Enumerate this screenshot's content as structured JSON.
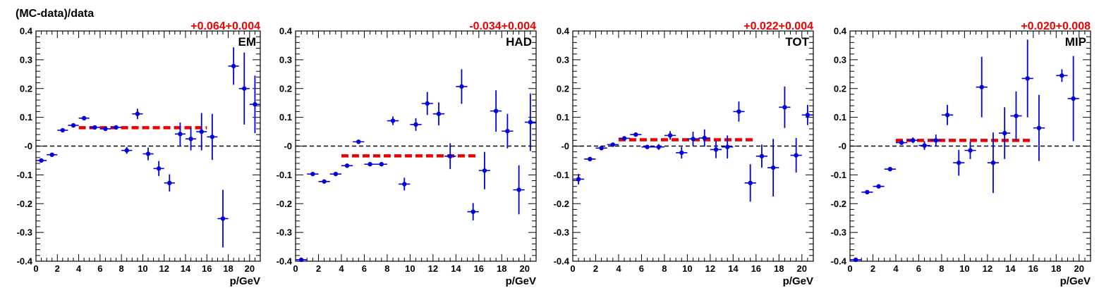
{
  "ylabel": "(MC-data)/data",
  "colors": {
    "points": "#0000dd",
    "fit": "#ee0000",
    "reference": "#000000",
    "fit_label": "#ee0000"
  },
  "chart_data": [
    {
      "type": "scatter",
      "label": "EM",
      "fit_label": "+0.064+0.004",
      "xlabel": "p/GeV",
      "xlim": [
        0,
        21
      ],
      "ylim": [
        -0.4,
        0.4
      ],
      "x_ticks": [
        "0",
        "2",
        "4",
        "6",
        "8",
        "10",
        "12",
        "14",
        "16",
        "18",
        "20"
      ],
      "y_ticks": [
        "-0.4",
        "-0.3",
        "-0.2",
        "-0.1",
        "-0",
        "0.1",
        "0.2",
        "0.3",
        "0.4"
      ],
      "reference_y": 0,
      "fit": {
        "x": [
          4,
          16
        ],
        "y": 0.064
      },
      "points": [
        {
          "x": 0.5,
          "y": -0.05,
          "err": 0.004
        },
        {
          "x": 1.5,
          "y": -0.03,
          "err": 0.004
        },
        {
          "x": 2.5,
          "y": 0.055,
          "err": 0.004
        },
        {
          "x": 3.5,
          "y": 0.072,
          "err": 0.004
        },
        {
          "x": 4.5,
          "y": 0.097,
          "err": 0.004
        },
        {
          "x": 5.5,
          "y": 0.065,
          "err": 0.004
        },
        {
          "x": 6.5,
          "y": 0.06,
          "err": 0.004
        },
        {
          "x": 7.5,
          "y": 0.065,
          "err": 0.004
        },
        {
          "x": 8.5,
          "y": -0.015,
          "err": 0.012
        },
        {
          "x": 9.5,
          "y": 0.112,
          "err": 0.018
        },
        {
          "x": 10.5,
          "y": -0.027,
          "err": 0.022
        },
        {
          "x": 11.5,
          "y": -0.078,
          "err": 0.026
        },
        {
          "x": 12.5,
          "y": -0.128,
          "err": 0.03
        },
        {
          "x": 13.5,
          "y": 0.042,
          "err": 0.04
        },
        {
          "x": 14.5,
          "y": 0.025,
          "err": 0.04
        },
        {
          "x": 15.5,
          "y": 0.05,
          "err": 0.065
        },
        {
          "x": 16.5,
          "y": 0.032,
          "err": 0.08
        },
        {
          "x": 17.5,
          "y": -0.252,
          "err": 0.1
        },
        {
          "x": 18.5,
          "y": 0.278,
          "err": 0.065
        },
        {
          "x": 19.5,
          "y": 0.2,
          "err": 0.125
        },
        {
          "x": 20.5,
          "y": 0.145,
          "err": 0.1
        }
      ]
    },
    {
      "type": "scatter",
      "label": "HAD",
      "fit_label": "-0.034+0.004",
      "xlabel": "p/GeV",
      "xlim": [
        0,
        21
      ],
      "ylim": [
        -0.4,
        0.4
      ],
      "x_ticks": [
        "0",
        "2",
        "4",
        "6",
        "8",
        "10",
        "12",
        "14",
        "16",
        "18",
        "20"
      ],
      "y_ticks": [
        "-0.4",
        "-0.3",
        "-0.2",
        "-0.1",
        "-0",
        "0.1",
        "0.2",
        "0.3",
        "0.4"
      ],
      "reference_y": 0,
      "fit": {
        "x": [
          4,
          16
        ],
        "y": -0.034
      },
      "points": [
        {
          "x": 0.5,
          "y": -0.395,
          "err": 0.004
        },
        {
          "x": 1.5,
          "y": -0.097,
          "err": 0.004
        },
        {
          "x": 2.5,
          "y": -0.123,
          "err": 0.004
        },
        {
          "x": 3.5,
          "y": -0.097,
          "err": 0.004
        },
        {
          "x": 4.5,
          "y": -0.068,
          "err": 0.004
        },
        {
          "x": 5.5,
          "y": 0.015,
          "err": 0.004
        },
        {
          "x": 6.5,
          "y": -0.063,
          "err": 0.004
        },
        {
          "x": 7.5,
          "y": -0.063,
          "err": 0.004
        },
        {
          "x": 8.5,
          "y": 0.088,
          "err": 0.015
        },
        {
          "x": 9.5,
          "y": -0.132,
          "err": 0.022
        },
        {
          "x": 10.5,
          "y": 0.075,
          "err": 0.022
        },
        {
          "x": 11.5,
          "y": 0.148,
          "err": 0.04
        },
        {
          "x": 12.5,
          "y": 0.112,
          "err": 0.04
        },
        {
          "x": 13.5,
          "y": -0.035,
          "err": 0.045
        },
        {
          "x": 14.5,
          "y": 0.207,
          "err": 0.06
        },
        {
          "x": 15.5,
          "y": -0.228,
          "err": 0.03
        },
        {
          "x": 16.5,
          "y": -0.085,
          "err": 0.065
        },
        {
          "x": 17.5,
          "y": 0.122,
          "err": 0.072
        },
        {
          "x": 18.5,
          "y": 0.052,
          "err": 0.06
        },
        {
          "x": 19.5,
          "y": -0.152,
          "err": 0.085
        },
        {
          "x": 20.5,
          "y": 0.083,
          "err": 0.1
        }
      ]
    },
    {
      "type": "scatter",
      "label": "TOT",
      "fit_label": "+0.022+0.004",
      "xlabel": "p/GeV",
      "xlim": [
        0,
        21
      ],
      "ylim": [
        -0.4,
        0.4
      ],
      "x_ticks": [
        "0",
        "2",
        "4",
        "6",
        "8",
        "10",
        "12",
        "14",
        "16",
        "18",
        "20"
      ],
      "y_ticks": [
        "-0.4",
        "-0.3",
        "-0.2",
        "-0.1",
        "-0",
        "0.1",
        "0.2",
        "0.3",
        "0.4"
      ],
      "reference_y": 0,
      "fit": {
        "x": [
          4,
          16
        ],
        "y": 0.022
      },
      "points": [
        {
          "x": 0.5,
          "y": -0.115,
          "err": 0.018
        },
        {
          "x": 1.5,
          "y": -0.045,
          "err": 0.006
        },
        {
          "x": 2.5,
          "y": -0.007,
          "err": 0.004
        },
        {
          "x": 3.5,
          "y": 0.005,
          "err": 0.004
        },
        {
          "x": 4.5,
          "y": 0.027,
          "err": 0.004
        },
        {
          "x": 5.5,
          "y": 0.04,
          "err": 0.006
        },
        {
          "x": 6.5,
          "y": -0.003,
          "err": 0.006
        },
        {
          "x": 7.5,
          "y": -0.003,
          "err": 0.01
        },
        {
          "x": 8.5,
          "y": 0.037,
          "err": 0.015
        },
        {
          "x": 9.5,
          "y": -0.023,
          "err": 0.02
        },
        {
          "x": 10.5,
          "y": 0.025,
          "err": 0.025
        },
        {
          "x": 11.5,
          "y": 0.028,
          "err": 0.03
        },
        {
          "x": 12.5,
          "y": -0.012,
          "err": 0.03
        },
        {
          "x": 13.5,
          "y": -0.003,
          "err": 0.04
        },
        {
          "x": 14.5,
          "y": 0.12,
          "err": 0.035
        },
        {
          "x": 15.5,
          "y": -0.128,
          "err": 0.065
        },
        {
          "x": 16.5,
          "y": -0.035,
          "err": 0.04
        },
        {
          "x": 17.5,
          "y": -0.075,
          "err": 0.1
        },
        {
          "x": 18.5,
          "y": 0.135,
          "err": 0.072
        },
        {
          "x": 19.5,
          "y": -0.032,
          "err": 0.06
        },
        {
          "x": 20.5,
          "y": 0.108,
          "err": 0.035
        }
      ]
    },
    {
      "type": "scatter",
      "label": "MIP",
      "fit_label": "+0.020+0.008",
      "xlabel": "p/GeV",
      "xlim": [
        0,
        21
      ],
      "ylim": [
        -0.4,
        0.4
      ],
      "x_ticks": [
        "0",
        "2",
        "4",
        "6",
        "8",
        "10",
        "12",
        "14",
        "16",
        "18",
        "20"
      ],
      "y_ticks": [
        "-0.4",
        "-0.3",
        "-0.2",
        "-0.1",
        "-0",
        "0.1",
        "0.2",
        "0.3",
        "0.4"
      ],
      "reference_y": 0,
      "fit": {
        "x": [
          4,
          16
        ],
        "y": 0.02
      },
      "points": [
        {
          "x": 0.5,
          "y": -0.395,
          "err": 0.004
        },
        {
          "x": 1.5,
          "y": -0.16,
          "err": 0.004
        },
        {
          "x": 2.5,
          "y": -0.14,
          "err": 0.004
        },
        {
          "x": 3.5,
          "y": -0.08,
          "err": 0.004
        },
        {
          "x": 4.5,
          "y": 0.012,
          "err": 0.008
        },
        {
          "x": 5.5,
          "y": 0.02,
          "err": 0.01
        },
        {
          "x": 6.5,
          "y": 0.002,
          "err": 0.015
        },
        {
          "x": 7.5,
          "y": 0.02,
          "err": 0.02
        },
        {
          "x": 8.5,
          "y": 0.108,
          "err": 0.035
        },
        {
          "x": 9.5,
          "y": -0.058,
          "err": 0.045
        },
        {
          "x": 10.5,
          "y": -0.015,
          "err": 0.03
        },
        {
          "x": 11.5,
          "y": 0.205,
          "err": 0.105
        },
        {
          "x": 12.5,
          "y": -0.058,
          "err": 0.105
        },
        {
          "x": 13.5,
          "y": 0.045,
          "err": 0.09
        },
        {
          "x": 14.5,
          "y": 0.105,
          "err": 0.085
        },
        {
          "x": 15.5,
          "y": 0.235,
          "err": 0.135
        },
        {
          "x": 16.5,
          "y": 0.063,
          "err": 0.115
        },
        {
          "x": 18.5,
          "y": 0.245,
          "err": 0.022
        },
        {
          "x": 19.5,
          "y": 0.165,
          "err": 0.148
        }
      ]
    }
  ]
}
